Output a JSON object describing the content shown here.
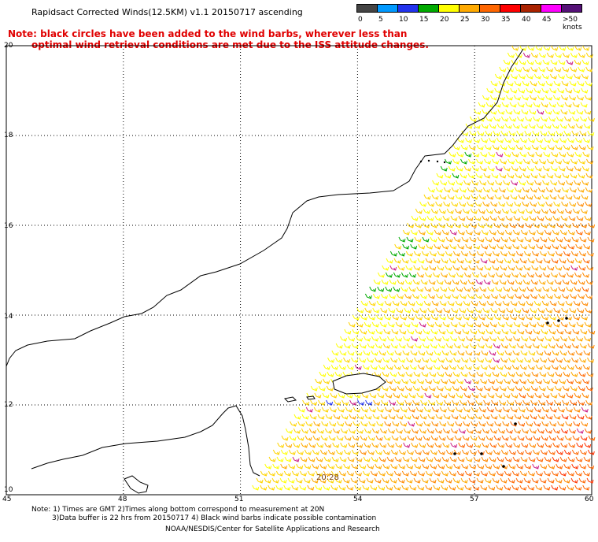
{
  "title": "Rapidsact Corrected Winds(12.5KM) v1.1 20150717 ascending",
  "note": {
    "line1": "Note: black circles have been added to the wind barbs, wherever less than",
    "line2": "optimal wind retrieval conditions are met due to the ISS attitude changes."
  },
  "legend": {
    "ticks": [
      "0",
      "5",
      "10",
      "15",
      "20",
      "25",
      "30",
      "35",
      "40",
      "45",
      ">50 knots"
    ],
    "colors": [
      "#444444",
      "#0099ff",
      "#2233ee",
      "#00aa00",
      "#ffff00",
      "#ffaa00",
      "#ff6600",
      "#ff0000",
      "#aa2200",
      "#ff00ff",
      "#551177"
    ]
  },
  "axes": {
    "y_ticks": [
      "20",
      "18",
      "16",
      "14",
      "12",
      "10"
    ],
    "x_ticks": [
      "45",
      "48",
      "51",
      "54",
      "57",
      "60"
    ],
    "lat_range": [
      10,
      20
    ],
    "lon_range": [
      45,
      60
    ],
    "grid": true
  },
  "time_label": "20:28",
  "footnote": {
    "line1": "Note: 1) Times are GMT 2)Times along bottom correspond to measurement at 20N",
    "line2": "3)Data buffer is 22 hrs from 20150717 4) Black wind barbs indicate possible contamination",
    "line3": "NOAA/NESDIS/Center for Satellite Applications and Research"
  },
  "colors": {
    "note_text": "#e00000",
    "coastline": "#000000",
    "grid": "#000000",
    "time_label": "#7a3c00"
  }
}
